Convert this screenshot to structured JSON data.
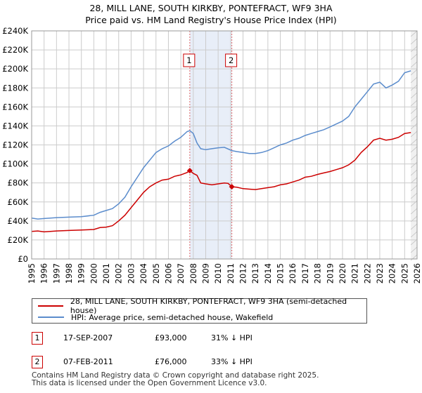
{
  "title_line1": "28, MILL LANE, SOUTH KIRKBY, PONTEFRACT, WF9 3HA",
  "title_line2": "Price paid vs. HM Land Registry's House Price Index (HPI)",
  "colors": {
    "property": "#cc0000",
    "hpi": "#5b8ccc",
    "shade": "#e8eef8",
    "grid": "#cccccc"
  },
  "chart_data": {
    "type": "line",
    "xlim": [
      1995,
      2026
    ],
    "ylim": [
      0,
      240000
    ],
    "x_ticks": [
      "1995",
      "1996",
      "1997",
      "1998",
      "1999",
      "2000",
      "2001",
      "2002",
      "2003",
      "2004",
      "2005",
      "2006",
      "2007",
      "2008",
      "2009",
      "2010",
      "2011",
      "2012",
      "2013",
      "2014",
      "2015",
      "2016",
      "2017",
      "2018",
      "2019",
      "2020",
      "2021",
      "2022",
      "2023",
      "2024",
      "2025",
      "2026"
    ],
    "y_ticks": [
      {
        "value": 0,
        "label": "£0"
      },
      {
        "value": 20000,
        "label": "£20K"
      },
      {
        "value": 40000,
        "label": "£40K"
      },
      {
        "value": 60000,
        "label": "£60K"
      },
      {
        "value": 80000,
        "label": "£80K"
      },
      {
        "value": 100000,
        "label": "£100K"
      },
      {
        "value": 120000,
        "label": "£120K"
      },
      {
        "value": 140000,
        "label": "£140K"
      },
      {
        "value": 160000,
        "label": "£160K"
      },
      {
        "value": 180000,
        "label": "£180K"
      },
      {
        "value": 200000,
        "label": "£200K"
      },
      {
        "value": 220000,
        "label": "£220K"
      },
      {
        "value": 240000,
        "label": "£240K"
      }
    ],
    "shaded_range": [
      2007.72,
      2011.1
    ],
    "projection_start": 2025.5,
    "series": [
      {
        "name": "28, MILL LANE, SOUTH KIRKBY, PONTEFRACT, WF9 3HA (semi-detached house)",
        "color": "#cc0000",
        "points": [
          [
            1995,
            29000
          ],
          [
            1995.5,
            29500
          ],
          [
            1996,
            28500
          ],
          [
            1997,
            29500
          ],
          [
            1998,
            30000
          ],
          [
            1999,
            30500
          ],
          [
            2000,
            31000
          ],
          [
            2000.5,
            33000
          ],
          [
            2001,
            33500
          ],
          [
            2001.5,
            35000
          ],
          [
            2002,
            40000
          ],
          [
            2002.5,
            46000
          ],
          [
            2003,
            54000
          ],
          [
            2003.5,
            62000
          ],
          [
            2004,
            70000
          ],
          [
            2004.5,
            76000
          ],
          [
            2005,
            80000
          ],
          [
            2005.5,
            83000
          ],
          [
            2006,
            84000
          ],
          [
            2006.5,
            87000
          ],
          [
            2007,
            88500
          ],
          [
            2007.5,
            91000
          ],
          [
            2007.72,
            93000
          ],
          [
            2008,
            90000
          ],
          [
            2008.3,
            88000
          ],
          [
            2008.6,
            80000
          ],
          [
            2009,
            79000
          ],
          [
            2009.5,
            78000
          ],
          [
            2010,
            79000
          ],
          [
            2010.5,
            80000
          ],
          [
            2010.8,
            79500
          ],
          [
            2011.1,
            76000
          ],
          [
            2011.5,
            75500
          ],
          [
            2012,
            74000
          ],
          [
            2012.5,
            73500
          ],
          [
            2013,
            73000
          ],
          [
            2013.5,
            74000
          ],
          [
            2014,
            75000
          ],
          [
            2014.5,
            76000
          ],
          [
            2015,
            78000
          ],
          [
            2015.5,
            79000
          ],
          [
            2016,
            81000
          ],
          [
            2016.5,
            83000
          ],
          [
            2017,
            86000
          ],
          [
            2017.5,
            87000
          ],
          [
            2018,
            89000
          ],
          [
            2018.5,
            90500
          ],
          [
            2019,
            92000
          ],
          [
            2019.5,
            94000
          ],
          [
            2020,
            96000
          ],
          [
            2020.5,
            99000
          ],
          [
            2021,
            104000
          ],
          [
            2021.5,
            112000
          ],
          [
            2022,
            118000
          ],
          [
            2022.5,
            125000
          ],
          [
            2023,
            127000
          ],
          [
            2023.5,
            125000
          ],
          [
            2024,
            126000
          ],
          [
            2024.5,
            128000
          ],
          [
            2025,
            132000
          ],
          [
            2025.5,
            133000
          ]
        ]
      },
      {
        "name": "HPI: Average price, semi-detached house, Wakefield",
        "color": "#5b8ccc",
        "points": [
          [
            1995,
            43000
          ],
          [
            1995.5,
            42000
          ],
          [
            1996,
            42500
          ],
          [
            1997,
            43500
          ],
          [
            1998,
            44000
          ],
          [
            1999,
            44500
          ],
          [
            2000,
            46000
          ],
          [
            2000.5,
            49000
          ],
          [
            2001,
            51000
          ],
          [
            2001.5,
            53000
          ],
          [
            2002,
            58000
          ],
          [
            2002.5,
            65000
          ],
          [
            2003,
            76000
          ],
          [
            2003.5,
            86000
          ],
          [
            2004,
            96000
          ],
          [
            2004.5,
            104000
          ],
          [
            2005,
            112000
          ],
          [
            2005.5,
            116000
          ],
          [
            2006,
            119000
          ],
          [
            2006.5,
            124000
          ],
          [
            2007,
            128000
          ],
          [
            2007.5,
            134000
          ],
          [
            2007.72,
            135000
          ],
          [
            2008,
            132000
          ],
          [
            2008.3,
            122000
          ],
          [
            2008.6,
            116000
          ],
          [
            2009,
            115000
          ],
          [
            2009.5,
            116000
          ],
          [
            2010,
            117000
          ],
          [
            2010.5,
            117500
          ],
          [
            2011.1,
            114000
          ],
          [
            2011.5,
            113000
          ],
          [
            2012,
            112000
          ],
          [
            2012.5,
            111000
          ],
          [
            2013,
            111000
          ],
          [
            2013.5,
            112000
          ],
          [
            2014,
            114000
          ],
          [
            2014.5,
            117000
          ],
          [
            2015,
            120000
          ],
          [
            2015.5,
            122000
          ],
          [
            2016,
            125000
          ],
          [
            2016.5,
            127000
          ],
          [
            2017,
            130000
          ],
          [
            2017.5,
            132000
          ],
          [
            2018,
            134000
          ],
          [
            2018.5,
            136000
          ],
          [
            2019,
            139000
          ],
          [
            2019.5,
            142000
          ],
          [
            2020,
            145000
          ],
          [
            2020.5,
            150000
          ],
          [
            2021,
            160000
          ],
          [
            2021.5,
            168000
          ],
          [
            2022,
            176000
          ],
          [
            2022.5,
            184000
          ],
          [
            2023,
            186000
          ],
          [
            2023.5,
            180000
          ],
          [
            2024,
            183000
          ],
          [
            2024.5,
            187000
          ],
          [
            2025,
            196000
          ],
          [
            2025.5,
            198000
          ]
        ]
      }
    ],
    "markers": [
      {
        "label": "1",
        "x": 2007.72,
        "y": 93000
      },
      {
        "label": "2",
        "x": 2011.1,
        "y": 76000
      }
    ]
  },
  "legend": {
    "property": "28, MILL LANE, SOUTH KIRKBY, PONTEFRACT, WF9 3HA (semi-detached house)",
    "hpi": "HPI: Average price, semi-detached house, Wakefield"
  },
  "transactions": [
    {
      "num": "1",
      "date": "17-SEP-2007",
      "price": "£93,000",
      "delta": "31% ↓ HPI"
    },
    {
      "num": "2",
      "date": "07-FEB-2011",
      "price": "£76,000",
      "delta": "33% ↓ HPI"
    }
  ],
  "footer": {
    "line1": "Contains HM Land Registry data © Crown copyright and database right 2025.",
    "line2": "This data is licensed under the Open Government Licence v3.0."
  }
}
